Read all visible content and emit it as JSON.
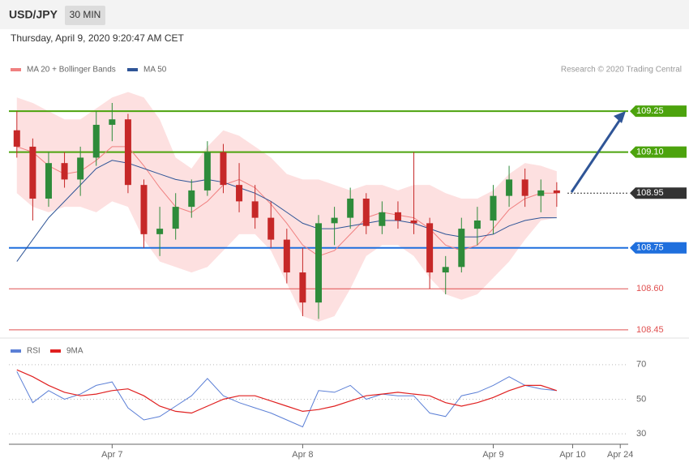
{
  "header": {
    "symbol": "USD/JPY",
    "timeframe": "30 MIN",
    "date": "Thursday, April 9, 2020 9:20:47 AM CET",
    "source": "Research © 2020 Trading Central"
  },
  "chart_data": [
    {
      "type": "candlestick",
      "open": [
        109.18,
        109.12,
        108.93,
        109.06,
        109.0,
        109.08,
        109.2,
        109.22,
        108.98,
        108.8,
        108.82,
        108.9,
        108.96,
        109.1,
        108.98,
        108.92,
        108.86,
        108.78,
        108.66,
        108.55,
        108.84,
        108.86,
        108.93,
        108.83,
        108.88,
        108.85,
        108.84,
        108.66,
        108.68,
        108.82,
        108.85,
        108.94,
        109.0,
        108.94,
        108.96,
        null,
        null,
        null,
        null
      ],
      "high": [
        109.25,
        109.15,
        109.1,
        109.1,
        109.12,
        109.25,
        109.28,
        109.24,
        109.0,
        108.9,
        108.95,
        109.0,
        109.14,
        109.13,
        109.06,
        108.98,
        108.92,
        108.82,
        108.75,
        108.87,
        108.9,
        108.97,
        108.95,
        108.92,
        108.92,
        109.1,
        108.86,
        108.72,
        108.86,
        108.9,
        108.98,
        109.05,
        109.04,
        109.0,
        108.99,
        null,
        null,
        null,
        null
      ],
      "low": [
        109.08,
        108.85,
        108.9,
        108.97,
        108.94,
        109.05,
        109.14,
        108.95,
        108.75,
        108.72,
        108.78,
        108.86,
        108.94,
        108.95,
        108.88,
        108.82,
        108.75,
        108.62,
        108.5,
        108.49,
        108.76,
        108.82,
        108.8,
        108.8,
        108.82,
        108.8,
        108.6,
        108.58,
        108.66,
        108.76,
        108.8,
        108.9,
        108.9,
        108.88,
        108.9,
        null,
        null,
        null,
        null
      ],
      "close": [
        109.12,
        108.93,
        109.06,
        109.0,
        109.08,
        109.2,
        109.22,
        108.98,
        108.8,
        108.82,
        108.9,
        108.96,
        109.1,
        108.98,
        108.92,
        108.86,
        108.78,
        108.66,
        108.55,
        108.84,
        108.86,
        108.93,
        108.83,
        108.88,
        108.85,
        108.84,
        108.66,
        108.68,
        108.82,
        108.85,
        108.94,
        109.0,
        108.94,
        108.96,
        108.95,
        null,
        null,
        null,
        null
      ],
      "up_color": "#2e8b3a",
      "down_color": "#c62828",
      "series": [
        {
          "name": "MA 20 + Bollinger Bands",
          "color": "#f08080",
          "band_color": "#fde0e0",
          "values": [
            109.12,
            109.1,
            109.05,
            109.02,
            109.03,
            109.07,
            109.12,
            109.12,
            109.05,
            108.97,
            108.9,
            108.88,
            108.92,
            108.98,
            109.0,
            108.97,
            108.91,
            108.84,
            108.76,
            108.72,
            108.74,
            108.8,
            108.86,
            108.88,
            108.87,
            108.86,
            108.82,
            108.76,
            108.74,
            108.76,
            108.82,
            108.89,
            108.93,
            108.95,
            108.95,
            null,
            null,
            null,
            null
          ],
          "upper": [
            109.3,
            109.28,
            109.25,
            109.22,
            109.22,
            109.26,
            109.3,
            109.32,
            109.3,
            109.22,
            109.08,
            109.04,
            109.12,
            109.18,
            109.16,
            109.12,
            109.08,
            109.02,
            109.0,
            109.0,
            108.98,
            108.96,
            108.98,
            108.98,
            108.96,
            108.98,
            108.98,
            108.95,
            108.93,
            108.93,
            108.96,
            109.02,
            109.06,
            109.05,
            109.03,
            null,
            null,
            null,
            null
          ],
          "lower": [
            108.95,
            108.9,
            108.88,
            108.9,
            108.9,
            108.88,
            108.92,
            108.9,
            108.78,
            108.7,
            108.68,
            108.66,
            108.68,
            108.74,
            108.8,
            108.8,
            108.74,
            108.62,
            108.5,
            108.48,
            108.5,
            108.6,
            108.72,
            108.76,
            108.76,
            108.72,
            108.64,
            108.58,
            108.56,
            108.58,
            108.64,
            108.7,
            108.78,
            108.85,
            108.86,
            null,
            null,
            null,
            null
          ]
        },
        {
          "name": "MA 50",
          "color": "#2f5597",
          "values": [
            108.7,
            108.78,
            108.86,
            108.92,
            108.98,
            109.04,
            109.07,
            109.06,
            109.04,
            109.02,
            109.0,
            108.99,
            109.0,
            108.99,
            108.97,
            108.95,
            108.92,
            108.88,
            108.84,
            108.82,
            108.82,
            108.83,
            108.84,
            108.85,
            108.85,
            108.84,
            108.82,
            108.8,
            108.79,
            108.79,
            108.8,
            108.83,
            108.85,
            108.86,
            108.86,
            null,
            null,
            null,
            null
          ]
        }
      ],
      "levels": [
        {
          "value": 109.25,
          "color": "#4ca30d",
          "style": "tag"
        },
        {
          "value": 109.1,
          "label": "109.10",
          "color": "#4ca30d",
          "style": "tag"
        },
        {
          "value": 108.95,
          "color": "#333333",
          "style": "current"
        },
        {
          "value": 108.75,
          "color": "#1f6fdd",
          "style": "tag"
        },
        {
          "value": 108.6,
          "label": "108.60",
          "color": "#e05050",
          "style": "line"
        },
        {
          "value": 108.45,
          "color": "#e05050",
          "style": "line"
        }
      ],
      "ylim": [
        108.42,
        109.36
      ]
    },
    {
      "type": "line",
      "categories": [
        null,
        null,
        null,
        null,
        null,
        null,
        "Apr 7",
        null,
        null,
        null,
        null,
        null,
        null,
        null,
        null,
        null,
        null,
        null,
        "Apr 8",
        null,
        null,
        null,
        null,
        null,
        null,
        null,
        null,
        null,
        null,
        null,
        "Apr 9",
        null,
        null,
        null,
        null,
        "Apr 10",
        null,
        null,
        "Apr 24"
      ],
      "series": [
        {
          "name": "RSI",
          "color": "#5b7fd6",
          "values": [
            66,
            48,
            55,
            50,
            53,
            58,
            60,
            45,
            38,
            40,
            46,
            52,
            62,
            52,
            48,
            45,
            42,
            38,
            34,
            55,
            54,
            58,
            50,
            53,
            52,
            52,
            42,
            40,
            52,
            54,
            58,
            63,
            58,
            56,
            55,
            null,
            null,
            null,
            null
          ]
        },
        {
          "name": "9MA",
          "color": "#e02020",
          "values": [
            67,
            63,
            58,
            54,
            52,
            53,
            55,
            56,
            52,
            46,
            43,
            42,
            46,
            50,
            52,
            52,
            49,
            46,
            43,
            44,
            46,
            49,
            52,
            53,
            54,
            53,
            52,
            48,
            46,
            48,
            51,
            55,
            58,
            58,
            55,
            null,
            null,
            null,
            null
          ]
        }
      ],
      "ylim": [
        25,
        80
      ],
      "yticks": [
        30,
        50,
        70
      ]
    }
  ]
}
